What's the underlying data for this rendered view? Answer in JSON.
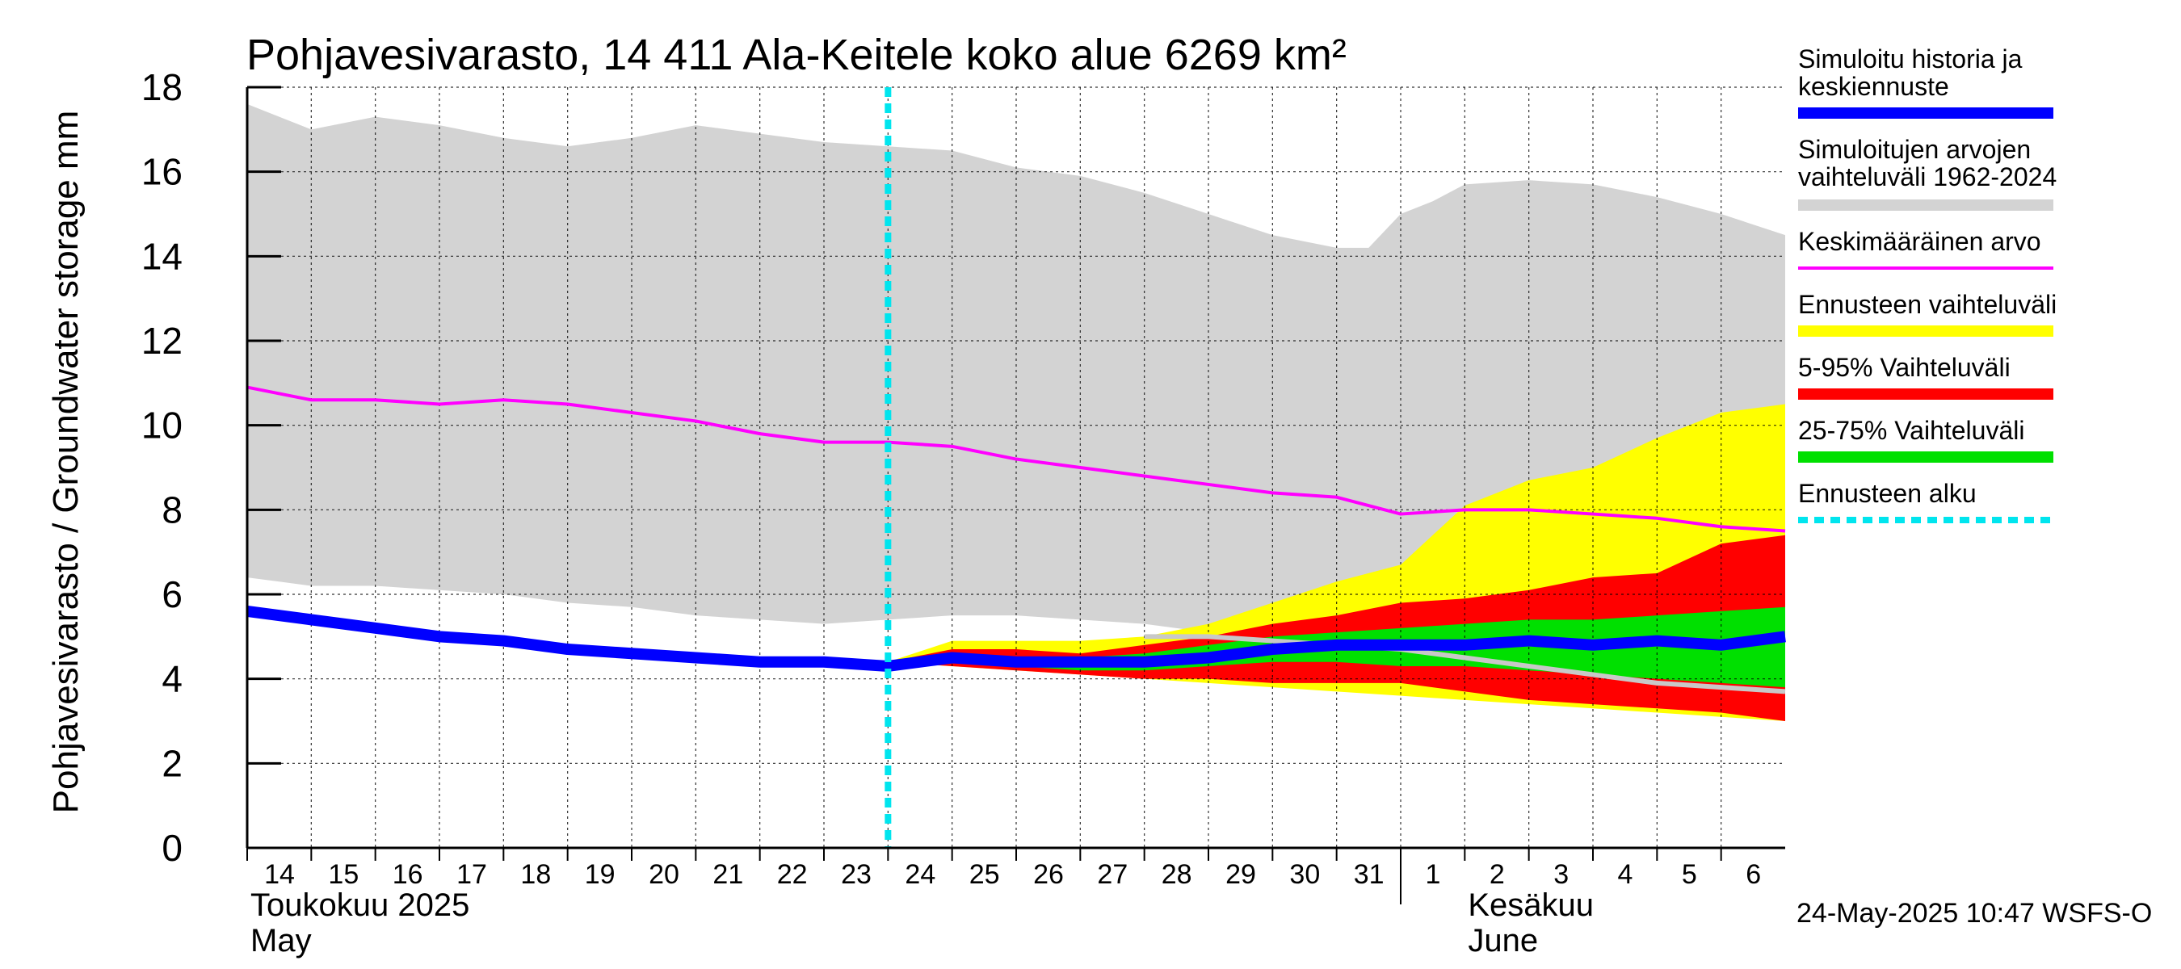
{
  "chart_data": {
    "type": "area",
    "title": "Pohjavesivarasto, 14 411 Ala-Keitele koko alue 6269 km²",
    "ylabel": "Pohjavesivarasto / Groundwater storage   mm",
    "ylim": [
      0,
      18
    ],
    "yticks": [
      0,
      2,
      4,
      6,
      8,
      10,
      12,
      14,
      16,
      18
    ],
    "xlim": [
      0,
      24
    ],
    "grid": true,
    "legend_position": "right",
    "x_tick_labels": [
      "14",
      "15",
      "16",
      "17",
      "18",
      "19",
      "20",
      "21",
      "22",
      "23",
      "24",
      "25",
      "26",
      "27",
      "28",
      "29",
      "30",
      "31",
      "1",
      "2",
      "3",
      "4",
      "5",
      "6"
    ],
    "month_labels": [
      {
        "x": 0,
        "line1": "Toukokuu  2025",
        "line2": "May"
      },
      {
        "x": 19,
        "line1": "Kesäkuu",
        "line2": "June"
      }
    ],
    "month_boundary_x": 18,
    "forecast_start_x": 10,
    "x": [
      0,
      1,
      2,
      3,
      4,
      5,
      6,
      7,
      8,
      9,
      10,
      11,
      12,
      13,
      14,
      15,
      16,
      17,
      18,
      19,
      20,
      21,
      22,
      23,
      24
    ],
    "series": [
      {
        "name": "Simuloitujen arvojen vaihteluväli 1962-2024",
        "kind": "band",
        "color": "#d3d3d3",
        "x": [
          0,
          0.5,
          1,
          2,
          3,
          4,
          5,
          6,
          7,
          8,
          9,
          10,
          11,
          12,
          13,
          14,
          15,
          16,
          17,
          17.5,
          18,
          18.5,
          19,
          20,
          21,
          22,
          23,
          24
        ],
        "upper": [
          17.6,
          17.3,
          17.0,
          17.3,
          17.1,
          16.8,
          16.6,
          16.8,
          17.1,
          16.9,
          16.7,
          16.6,
          16.5,
          16.1,
          15.9,
          15.5,
          15.0,
          14.5,
          14.2,
          14.2,
          15.0,
          15.3,
          15.7,
          15.8,
          15.7,
          15.4,
          15.0,
          14.5
        ],
        "lower": [
          6.4,
          6.3,
          6.2,
          6.2,
          6.1,
          6.0,
          5.8,
          5.7,
          5.5,
          5.4,
          5.3,
          5.4,
          5.5,
          5.5,
          5.4,
          5.3,
          5.1,
          4.9,
          4.8,
          4.8,
          4.8,
          4.8,
          4.7,
          4.6,
          4.6,
          4.6,
          4.6,
          4.6
        ]
      },
      {
        "name": "Ennusteen vaihteluväli",
        "kind": "band",
        "color": "#ffff00",
        "x": [
          10,
          11,
          12,
          13,
          14,
          15,
          16,
          17,
          18,
          19,
          20,
          21,
          22,
          23,
          24
        ],
        "upper": [
          4.4,
          4.9,
          4.9,
          4.9,
          5.0,
          5.3,
          5.8,
          6.3,
          6.7,
          8.1,
          8.7,
          9.0,
          9.7,
          10.3,
          10.5
        ],
        "lower": [
          4.4,
          4.3,
          4.2,
          4.1,
          4.0,
          3.9,
          3.8,
          3.7,
          3.6,
          3.5,
          3.4,
          3.3,
          3.2,
          3.1,
          3.0
        ]
      },
      {
        "name": "5-95% Vaihteluväli",
        "kind": "band",
        "color": "#ff0000",
        "x": [
          10,
          11,
          12,
          13,
          14,
          15,
          16,
          17,
          18,
          19,
          20,
          21,
          22,
          23,
          24
        ],
        "upper": [
          4.4,
          4.7,
          4.7,
          4.6,
          4.8,
          5.0,
          5.3,
          5.5,
          5.8,
          5.9,
          6.1,
          6.4,
          6.5,
          7.2,
          7.4
        ],
        "lower": [
          4.4,
          4.3,
          4.2,
          4.1,
          4.0,
          4.0,
          3.9,
          3.9,
          3.9,
          3.7,
          3.5,
          3.4,
          3.3,
          3.2,
          3.0
        ]
      },
      {
        "name": "25-75% Vaihteluväli",
        "kind": "band",
        "color": "#00e000",
        "x": [
          10,
          11,
          12,
          13,
          14,
          15,
          16,
          17,
          18,
          19,
          20,
          21,
          22,
          23,
          24
        ],
        "upper": [
          4.4,
          4.6,
          4.5,
          4.5,
          4.6,
          4.8,
          5.0,
          5.1,
          5.2,
          5.3,
          5.4,
          5.4,
          5.5,
          5.6,
          5.7
        ],
        "lower": [
          4.4,
          4.4,
          4.3,
          4.2,
          4.2,
          4.3,
          4.4,
          4.4,
          4.3,
          4.3,
          4.2,
          4.1,
          4.0,
          3.9,
          3.8
        ]
      },
      {
        "name": "Keskimääräinen arvo",
        "kind": "line",
        "color": "#ff00ff",
        "x": [
          0,
          1,
          2,
          3,
          4,
          5,
          6,
          7,
          8,
          9,
          10,
          11,
          12,
          13,
          14,
          15,
          16,
          17,
          18,
          19,
          20,
          21,
          22,
          23,
          24
        ],
        "values": [
          10.9,
          10.6,
          10.6,
          10.5,
          10.6,
          10.5,
          10.3,
          10.1,
          9.8,
          9.6,
          9.6,
          9.5,
          9.2,
          9.0,
          8.8,
          8.6,
          8.4,
          8.3,
          7.9,
          8.0,
          8.0,
          7.9,
          7.8,
          7.6,
          7.5
        ]
      },
      {
        "name": "",
        "kind": "line",
        "color": "#c8c8c8",
        "x": [
          14,
          15,
          16,
          17,
          18,
          19,
          20,
          21,
          22,
          23,
          24
        ],
        "values": [
          5.0,
          5.0,
          4.9,
          4.8,
          4.7,
          4.5,
          4.3,
          4.1,
          3.9,
          3.8,
          3.7
        ]
      },
      {
        "name": "Simuloitu historia ja keskiennuste",
        "kind": "line",
        "color": "#0000ff",
        "x": [
          0,
          1,
          2,
          3,
          4,
          5,
          6,
          7,
          8,
          9,
          10,
          11,
          12,
          13,
          14,
          15,
          16,
          17,
          18,
          19,
          20,
          21,
          22,
          23,
          24
        ],
        "values": [
          5.6,
          5.4,
          5.2,
          5.0,
          4.9,
          4.7,
          4.6,
          4.5,
          4.4,
          4.4,
          4.3,
          4.5,
          4.4,
          4.4,
          4.4,
          4.5,
          4.7,
          4.8,
          4.8,
          4.8,
          4.9,
          4.8,
          4.9,
          4.8,
          5.0
        ]
      }
    ],
    "legend": [
      {
        "label": "Simuloitu historia ja keskiennuste",
        "color": "#0000ff",
        "style": "thick"
      },
      {
        "label": "Simuloitujen arvojen vaihteluväli 1962-2024",
        "color": "#d3d3d3",
        "style": "thick"
      },
      {
        "label": "Keskimääräinen arvo",
        "color": "#ff00ff",
        "style": "thin"
      },
      {
        "label": "Ennusteen vaihteluväli",
        "color": "#ffff00",
        "style": "thick"
      },
      {
        "label": "5-95% Vaihteluväli",
        "color": "#ff0000",
        "style": "thick"
      },
      {
        "label": "25-75% Vaihteluväli",
        "color": "#00e000",
        "style": "thick"
      },
      {
        "label": "Ennusteen alku",
        "color": "#00e5ee",
        "style": "dashed"
      }
    ]
  },
  "legend_texts": {
    "l0a": "Simuloitu historia ja",
    "l0b": "keskiennuste",
    "l1a": "Simuloitujen arvojen",
    "l1b": "vaihteluväli 1962-2024",
    "l2": "Keskimääräinen arvo",
    "l3": "Ennusteen vaihteluväli",
    "l4": "5-95% Vaihteluväli",
    "l5": "25-75% Vaihteluväli",
    "l6": "Ennusteen alku"
  },
  "footer": {
    "timestamp": "24-May-2025 10:47 WSFS-O"
  }
}
